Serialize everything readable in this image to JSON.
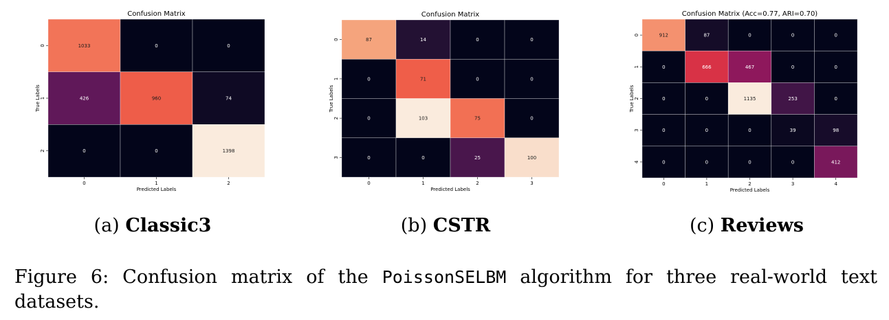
{
  "chart_data": [
    {
      "type": "heatmap",
      "title": "Confusion Matrix",
      "xlabel": "Predicted Labels",
      "ylabel": "True Labels",
      "x_ticks": [
        "0",
        "1",
        "2"
      ],
      "y_ticks": [
        "0",
        "1",
        "2"
      ],
      "values": [
        [
          1033,
          0,
          0
        ],
        [
          426,
          960,
          74
        ],
        [
          0,
          0,
          1398
        ]
      ],
      "colormap": "rocket",
      "annotated": true
    },
    {
      "type": "heatmap",
      "title": "Confusion Matrix",
      "xlabel": "Predicted Labels",
      "ylabel": "True Labels",
      "x_ticks": [
        "0",
        "1",
        "2",
        "3"
      ],
      "y_ticks": [
        "0",
        "1",
        "2",
        "3"
      ],
      "values": [
        [
          87,
          14,
          0,
          0
        ],
        [
          0,
          71,
          0,
          0
        ],
        [
          0,
          103,
          75,
          0
        ],
        [
          0,
          0,
          25,
          100
        ]
      ],
      "colormap": "rocket",
      "annotated": true
    },
    {
      "type": "heatmap",
      "title": "Confusion Matrix (Acc=0.77, ARI=0.70)",
      "xlabel": "Predicted Labels",
      "ylabel": "True Labels",
      "x_ticks": [
        "0",
        "1",
        "2",
        "3",
        "4"
      ],
      "y_ticks": [
        "0",
        "1",
        "2",
        "3",
        "4"
      ],
      "values": [
        [
          912,
          87,
          0,
          0,
          0
        ],
        [
          0,
          666,
          467,
          0,
          0
        ],
        [
          0,
          0,
          1135,
          253,
          0
        ],
        [
          0,
          0,
          0,
          39,
          98
        ],
        [
          0,
          0,
          0,
          0,
          412
        ]
      ],
      "colormap": "rocket",
      "annotated": true
    }
  ],
  "subcaptions": [
    {
      "prefix": "(a)",
      "name": "Classic3"
    },
    {
      "prefix": "(b)",
      "name": "CSTR"
    },
    {
      "prefix": "(c)",
      "name": "Reviews"
    }
  ],
  "caption": {
    "before": "Figure 6:  Confusion matrix of the",
    "algorithm": "PoissonSELBM",
    "after": "algorithm for three real-world text datasets."
  }
}
